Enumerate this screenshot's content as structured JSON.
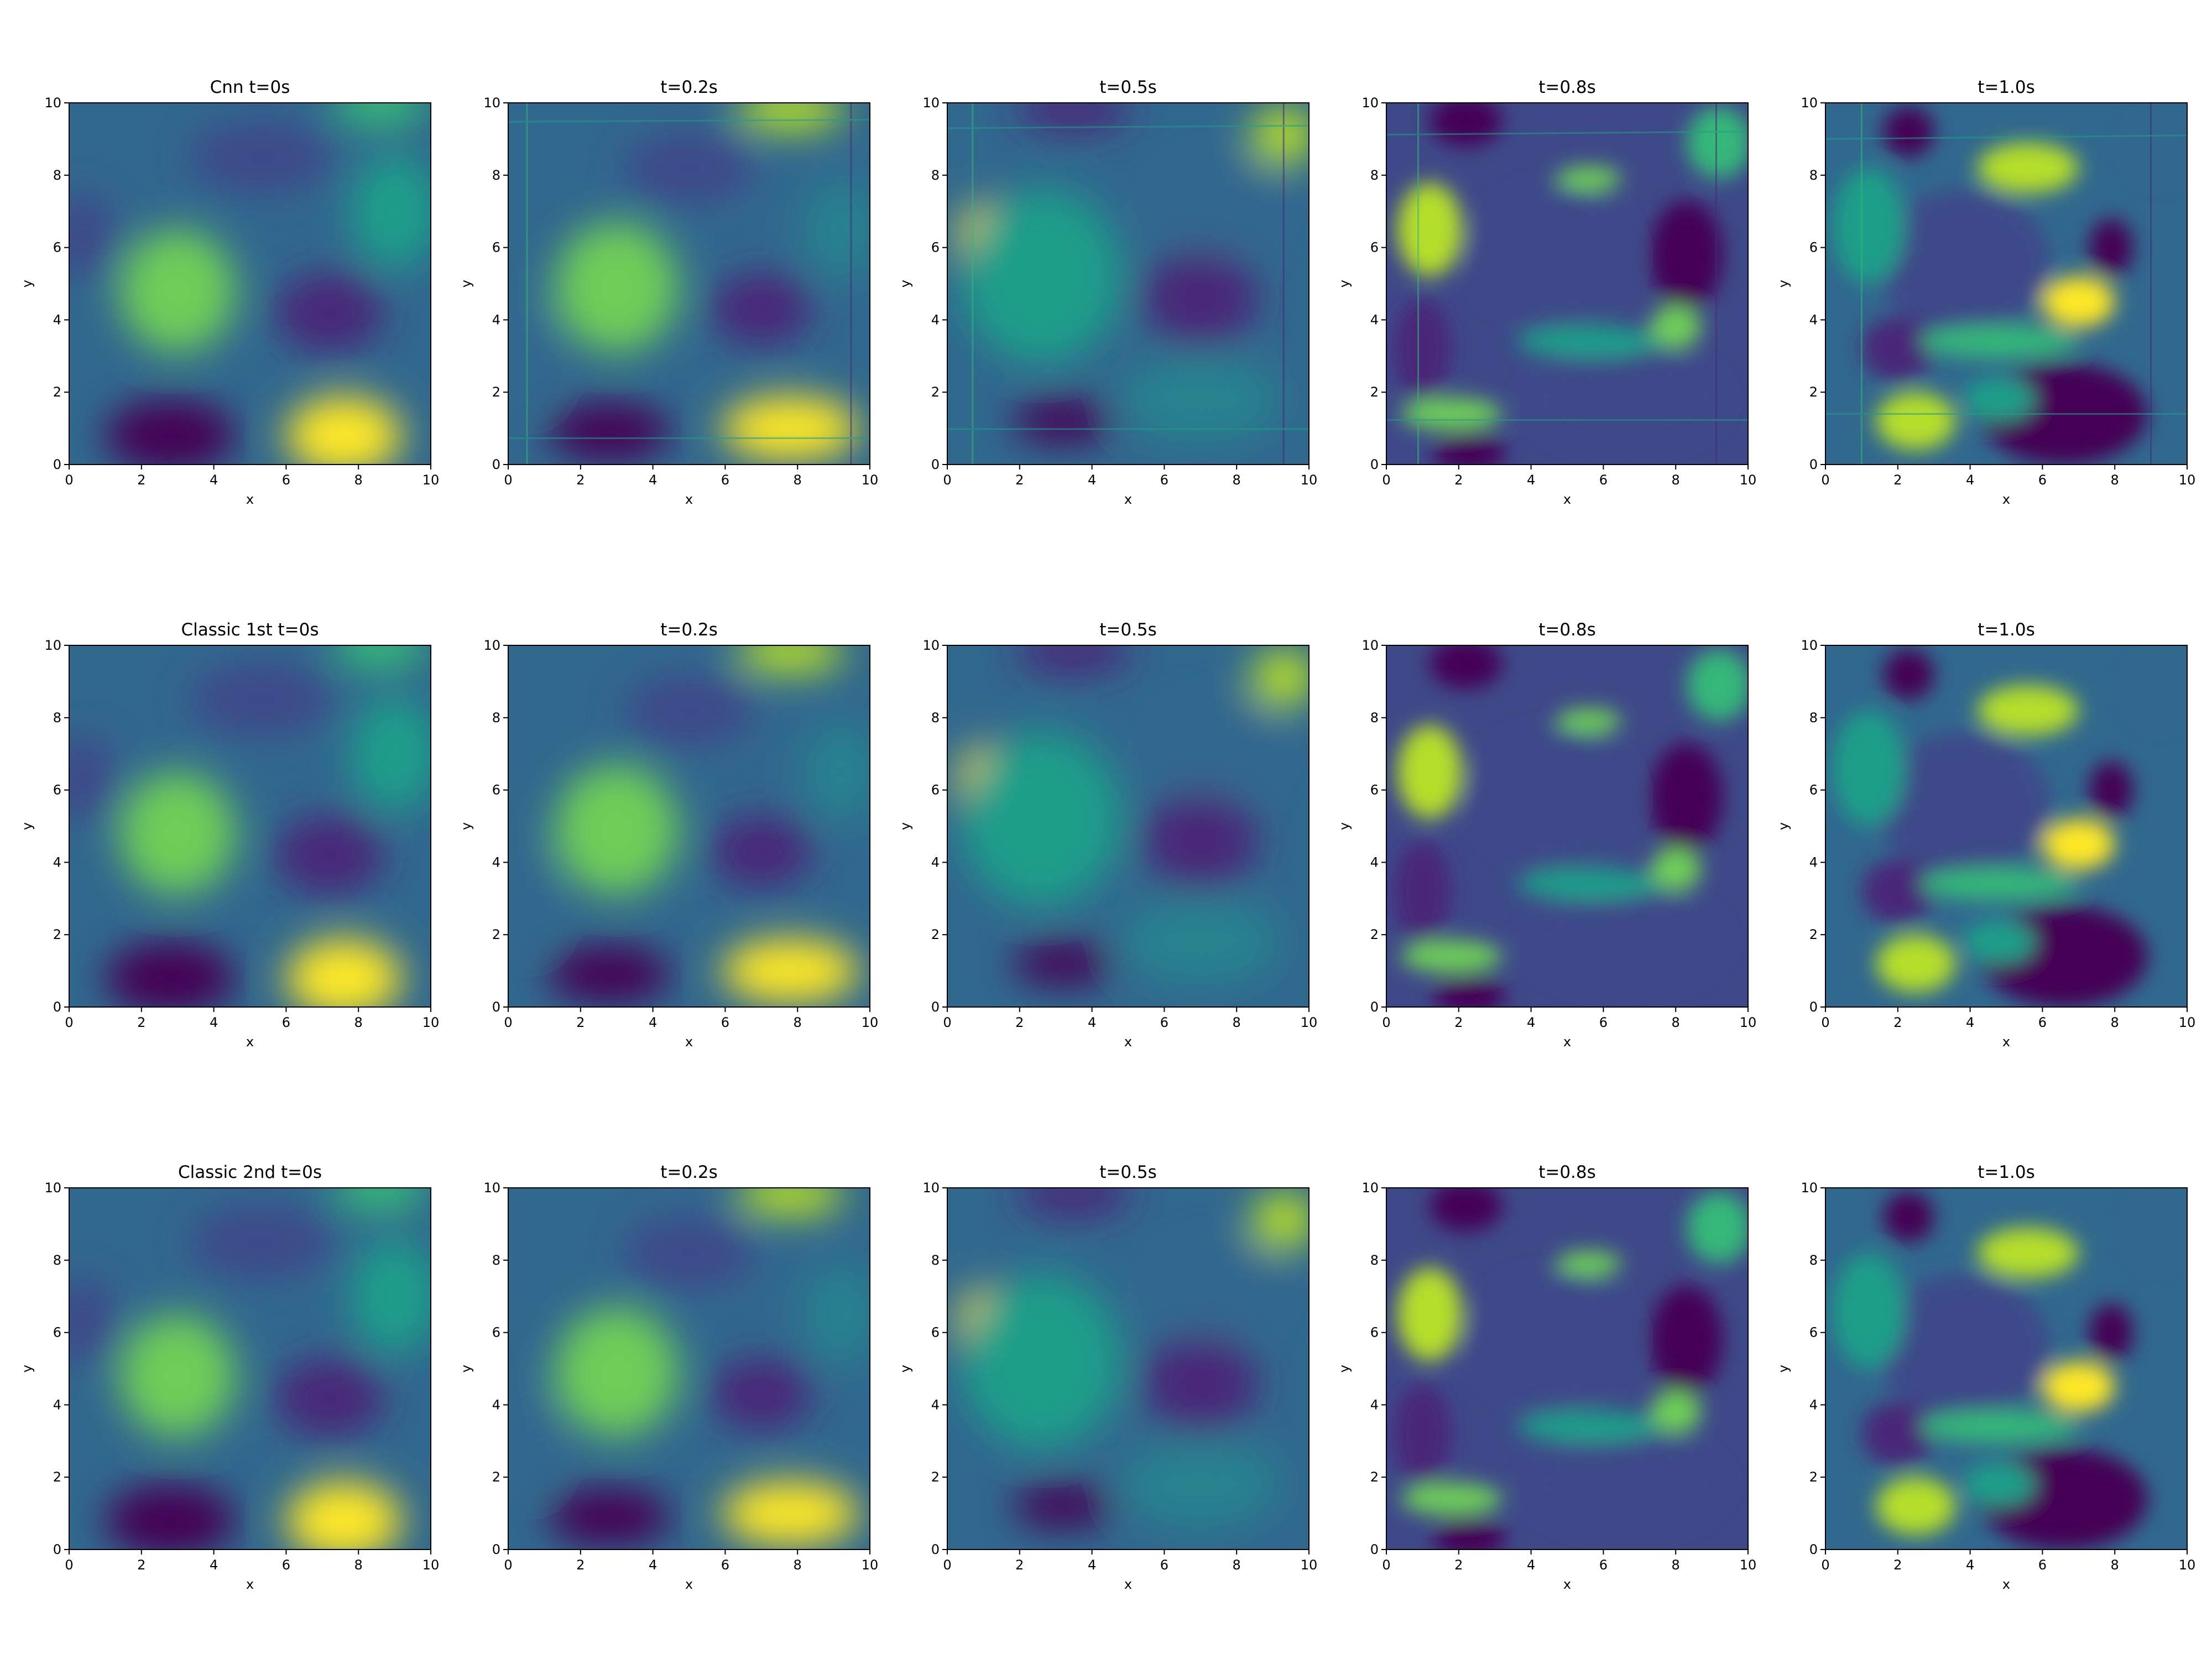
{
  "figure": {
    "rows": [
      "Cnn",
      "Classic 1st",
      "Classic 2nd"
    ],
    "times": [
      "t=0s",
      "t=0.2s",
      "t=0.5s",
      "t=0.8s",
      "t=1.0s"
    ]
  },
  "chart_data": {
    "type": "heatmap",
    "colormap": "viridis",
    "xlabel": "x",
    "ylabel": "y",
    "xlim": [
      0,
      10
    ],
    "ylim": [
      0,
      10
    ],
    "xticks": [
      0,
      2,
      4,
      6,
      8,
      10
    ],
    "yticks": [
      0,
      2,
      4,
      6,
      8,
      10
    ],
    "grid": false,
    "panels": [
      {
        "title": "Cnn t=0s",
        "row": 0,
        "col": 0,
        "time": 0.0,
        "scheme": "cnn"
      },
      {
        "title": "t=0.2s",
        "row": 0,
        "col": 1,
        "time": 0.2,
        "scheme": "cnn"
      },
      {
        "title": "t=0.5s",
        "row": 0,
        "col": 2,
        "time": 0.5,
        "scheme": "cnn"
      },
      {
        "title": "t=0.8s",
        "row": 0,
        "col": 3,
        "time": 0.8,
        "scheme": "cnn"
      },
      {
        "title": "t=1.0s",
        "row": 0,
        "col": 4,
        "time": 1.0,
        "scheme": "cnn"
      },
      {
        "title": "Classic 1st t=0s",
        "row": 1,
        "col": 0,
        "time": 0.0,
        "scheme": "classic-1st"
      },
      {
        "title": "t=0.2s",
        "row": 1,
        "col": 1,
        "time": 0.2,
        "scheme": "classic-1st"
      },
      {
        "title": "t=0.5s",
        "row": 1,
        "col": 2,
        "time": 0.5,
        "scheme": "classic-1st"
      },
      {
        "title": "t=0.8s",
        "row": 1,
        "col": 3,
        "time": 0.8,
        "scheme": "classic-1st"
      },
      {
        "title": "t=1.0s",
        "row": 1,
        "col": 4,
        "time": 1.0,
        "scheme": "classic-1st"
      },
      {
        "title": "Classic 2nd t=0s",
        "row": 2,
        "col": 0,
        "time": 0.0,
        "scheme": "classic-2nd"
      },
      {
        "title": "t=0.2s",
        "row": 2,
        "col": 1,
        "time": 0.2,
        "scheme": "classic-2nd"
      },
      {
        "title": "t=0.5s",
        "row": 2,
        "col": 2,
        "time": 0.5,
        "scheme": "classic-2nd"
      },
      {
        "title": "t=0.8s",
        "row": 2,
        "col": 3,
        "time": 0.8,
        "scheme": "classic-2nd"
      },
      {
        "title": "t=1.0s",
        "row": 2,
        "col": 4,
        "time": 1.0,
        "scheme": "classic-2nd"
      }
    ]
  }
}
